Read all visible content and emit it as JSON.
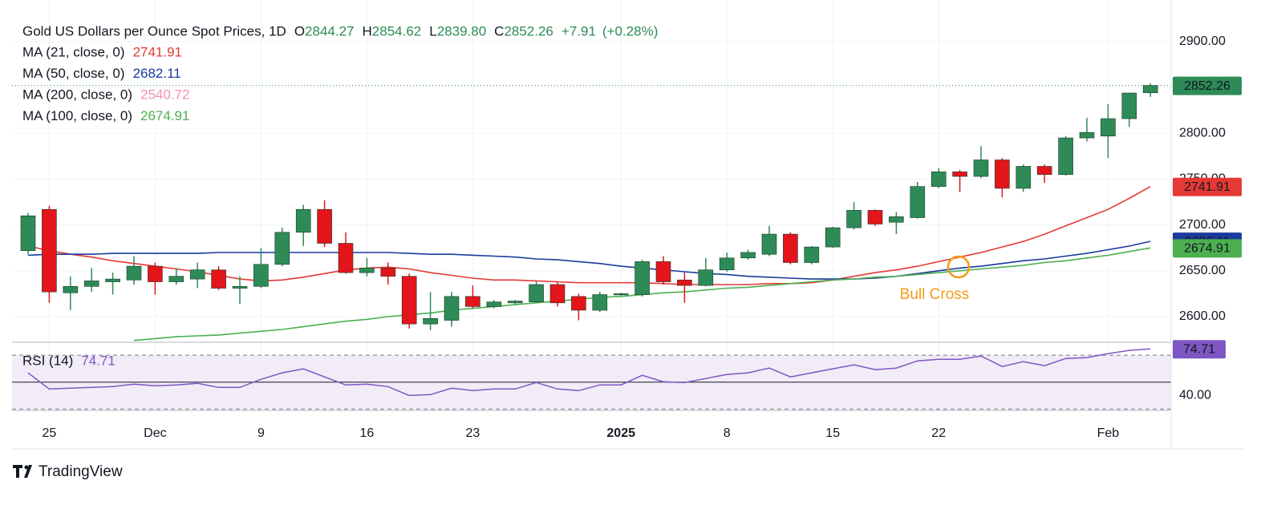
{
  "chart_data": {
    "type": "candlestick",
    "title": "Gold US Dollars per Ounce Spot Prices, 1D",
    "last_bar": {
      "labels": [
        "O",
        "H",
        "L",
        "C"
      ],
      "value_labels": [
        "2844.27",
        "2854.62",
        "2839.80",
        "2852.26"
      ],
      "change": {
        "value": 7.91,
        "label": "+7.91"
      },
      "change_pct": {
        "value": 0.28,
        "label": "(+0.28%)"
      }
    },
    "up_color": "#2e8b57",
    "down_color": "#e3141a",
    "categories": [
      null,
      "25",
      null,
      null,
      null,
      null,
      "Dec",
      null,
      null,
      null,
      null,
      "9",
      null,
      null,
      null,
      null,
      "16",
      null,
      null,
      null,
      null,
      "23",
      null,
      null,
      null,
      null,
      null,
      null,
      "2025",
      null,
      null,
      null,
      null,
      "8",
      null,
      null,
      null,
      null,
      "15",
      null,
      null,
      null,
      null,
      "22",
      null,
      null,
      null,
      null,
      null,
      null,
      null,
      "Feb",
      null,
      null
    ],
    "open": [
      2672,
      2717,
      2626,
      2633,
      2638,
      2640,
      2655,
      2638,
      2641,
      2651,
      2631,
      2633,
      2657,
      2692,
      2717,
      2680,
      2648,
      2653,
      2644,
      2592,
      2596,
      2622,
      2611,
      2615,
      2616,
      2635,
      2622,
      2607,
      2624,
      2624,
      2660,
      2640,
      2634,
      2651,
      2664,
      2668,
      2690,
      2659,
      2676,
      2697,
      2716,
      2703,
      2708,
      2742,
      2758,
      2753,
      2771,
      2740,
      2764,
      2755,
      2795,
      2797,
      2816,
      2844.27
    ],
    "high": [
      2713,
      2721,
      2644,
      2653,
      2648,
      2666,
      2659,
      2653,
      2659,
      2655,
      2644,
      2675,
      2697,
      2722,
      2727,
      2692,
      2664,
      2659,
      2647,
      2627,
      2627,
      2634,
      2618,
      2618,
      2638,
      2638,
      2625,
      2627,
      2626,
      2662,
      2666,
      2648,
      2664,
      2670,
      2673,
      2699,
      2692,
      2677,
      2698,
      2725,
      2717,
      2714,
      2747,
      2762,
      2760,
      2786,
      2773,
      2766,
      2766,
      2797,
      2817,
      2832,
      2844,
      2854.62
    ],
    "low": [
      2668,
      2615,
      2607,
      2627,
      2624,
      2635,
      2624,
      2635,
      2631,
      2629,
      2614,
      2631,
      2655,
      2677,
      2676,
      2647,
      2644,
      2635,
      2587,
      2585,
      2589,
      2609,
      2609,
      2613,
      2615,
      2611,
      2596,
      2605,
      2623,
      2622,
      2635,
      2615,
      2633,
      2649,
      2662,
      2666,
      2657,
      2657,
      2675,
      2695,
      2699,
      2690,
      2707,
      2740,
      2736,
      2751,
      2730,
      2736,
      2746,
      2754,
      2791,
      2773,
      2807,
      2839.8
    ],
    "close": [
      2710,
      2627,
      2633,
      2639,
      2641,
      2655,
      2638,
      2644,
      2651,
      2631,
      2633,
      2657,
      2692,
      2717,
      2680,
      2648,
      2653,
      2644,
      2592,
      2598,
      2622,
      2611,
      2616,
      2617,
      2635,
      2615,
      2607,
      2624,
      2625,
      2660,
      2638,
      2634,
      2651,
      2664,
      2670,
      2690,
      2659,
      2676,
      2697,
      2716,
      2701,
      2709,
      2742,
      2758,
      2753,
      2771,
      2740,
      2764,
      2755,
      2795,
      2801,
      2816,
      2844,
      2852.26
    ],
    "moving_averages": [
      {
        "name": "MA (21, close, 0)",
        "color": "#e53935",
        "values": [
          2677,
          2672,
          2668,
          2665,
          2661,
          2658,
          2655,
          2652,
          2649,
          2645,
          2641,
          2639,
          2640,
          2643,
          2647,
          2651,
          2653,
          2654,
          2652,
          2648,
          2645,
          2642,
          2640,
          2640,
          2639,
          2638,
          2637,
          2637,
          2637,
          2637,
          2636,
          2635,
          2635,
          2635,
          2635,
          2636,
          2636,
          2637,
          2640,
          2644,
          2648,
          2651,
          2655,
          2660,
          2665,
          2670,
          2676,
          2682,
          2690,
          2699,
          2708,
          2717,
          2729,
          2741.91
        ]
      },
      {
        "name": "MA (50, close, 0)",
        "color": "#1a3a9c",
        "values": [
          2667,
          2668,
          2668,
          2668,
          2669,
          2669,
          2669,
          2669,
          2669,
          2670,
          2670,
          2670,
          2670,
          2670,
          2670,
          2670,
          2670,
          2670,
          2669,
          2668,
          2668,
          2667,
          2666,
          2665,
          2663,
          2662,
          2660,
          2658,
          2655,
          2653,
          2651,
          2649,
          2647,
          2646,
          2644,
          2643,
          2642,
          2641,
          2641,
          2641,
          2642,
          2644,
          2647,
          2650,
          2653,
          2655,
          2658,
          2661,
          2663,
          2666,
          2669,
          2673,
          2677,
          2682.11
        ]
      },
      {
        "name": "MA (200, close, 0)",
        "color": "#f48fb1",
        "last": 2540.72
      },
      {
        "name": "MA (100, close, 0)",
        "color": "#4caf50",
        "values": [
          null,
          null,
          null,
          null,
          null,
          2574,
          2576,
          2578,
          2579,
          2580,
          2582,
          2584,
          2586,
          2589,
          2592,
          2595,
          2597,
          2600,
          2602,
          2604,
          2607,
          2609,
          2611,
          2613,
          2615,
          2617,
          2619,
          2621,
          2622,
          2624,
          2626,
          2627,
          2629,
          2631,
          2632,
          2634,
          2636,
          2638,
          2640,
          2641,
          2643,
          2644,
          2646,
          2648,
          2650,
          2652,
          2654,
          2656,
          2659,
          2661,
          2664,
          2667,
          2671,
          2674.91
        ]
      }
    ],
    "ylim": [
      2572,
      2928
    ],
    "yticks": [
      {
        "value": 2600,
        "label": "2600.00"
      },
      {
        "value": 2650,
        "label": "2650.00"
      },
      {
        "value": 2700,
        "label": "2700.00"
      },
      {
        "value": 2750,
        "label": "2750.00"
      },
      {
        "value": 2800,
        "label": "2800.00"
      },
      {
        "value": 2850,
        "label": "2850.00"
      },
      {
        "value": 2900,
        "label": "2900.00"
      }
    ],
    "grid": true,
    "annotation": {
      "text": "Bull Cross",
      "color": "#f29d1b"
    },
    "rsi": {
      "name": "RSI (14)",
      "color": "#7e57c2",
      "values": [
        56.9,
        44.9,
        45.5,
        46.1,
        46.7,
        48.5,
        47.3,
        47.9,
        49.1,
        46.1,
        46.1,
        52.1,
        56.9,
        59.9,
        53.9,
        47.9,
        48.5,
        46.7,
        40.1,
        40.7,
        45.5,
        43.7,
        44.9,
        44.9,
        49.7,
        44.9,
        43.7,
        47.9,
        47.9,
        55.1,
        50.3,
        49.7,
        52.7,
        55.7,
        56.9,
        60.4,
        53.9,
        56.9,
        59.9,
        62.8,
        59.3,
        60.4,
        65.8,
        67.0,
        67.0,
        69.4,
        61.6,
        65.2,
        62.2,
        67.6,
        68.2,
        71.2,
        73.6,
        74.71
      ],
      "ylim": [
        29,
        79
      ],
      "yticks": [
        {
          "value": 40,
          "label": "40.00"
        }
      ],
      "levels": [
        30,
        50,
        70
      ]
    }
  },
  "footer": {
    "brand": "TradingView"
  }
}
